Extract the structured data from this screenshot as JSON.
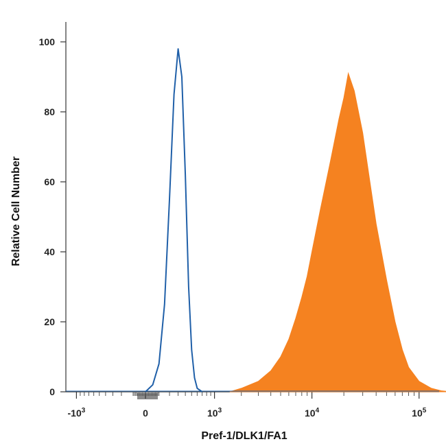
{
  "chart_data": {
    "type": "area",
    "xlabel": "Pref-1/DLK1/FA1",
    "ylabel": "Relative Cell Number",
    "x_scale": "biexponential",
    "ylim": [
      0,
      100
    ],
    "y_ticks": [
      0,
      20,
      40,
      60,
      80,
      100
    ],
    "x_ticks": [
      {
        "value": -1000,
        "base": "-10",
        "exp": "3"
      },
      {
        "value": 0,
        "base": "0",
        "exp": ""
      },
      {
        "value": 1000,
        "base": "10",
        "exp": "3"
      },
      {
        "value": 10000,
        "base": "10",
        "exp": "4"
      },
      {
        "value": 100000,
        "base": "10",
        "exp": "5"
      }
    ],
    "grid": false,
    "legend": "none",
    "series": [
      {
        "style": "outline",
        "color": "#1f5fa8",
        "x": [
          0,
          50,
          100,
          150,
          200,
          250,
          300,
          350,
          400,
          450,
          500,
          550,
          600,
          700
        ],
        "y": [
          0,
          2,
          8,
          25,
          55,
          85,
          98,
          90,
          62,
          30,
          12,
          4,
          1,
          0
        ]
      },
      {
        "style": "filled",
        "color": "#f58220",
        "x": [
          1500,
          2000,
          3000,
          4000,
          5000,
          6000,
          7000,
          8000,
          9000,
          10000,
          12000,
          15000,
          18000,
          20000,
          22000,
          25000,
          30000,
          35000,
          40000,
          50000,
          60000,
          70000,
          80000,
          100000,
          130000,
          160000,
          200000
        ],
        "y": [
          0,
          1,
          3,
          6,
          10,
          15,
          21,
          27,
          33,
          40,
          52,
          66,
          78,
          84,
          91,
          86,
          74,
          60,
          48,
          32,
          20,
          12,
          7,
          3,
          1,
          0.3,
          0
        ]
      }
    ]
  }
}
